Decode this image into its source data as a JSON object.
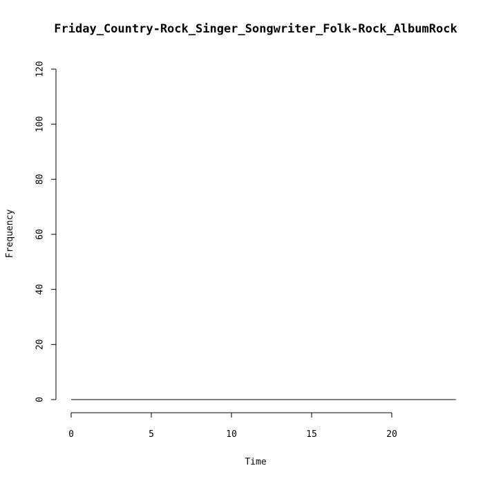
{
  "chart_data": {
    "type": "line",
    "title": "Friday_Country-Rock_Singer_Songwriter_Folk-Rock_AlbumRock",
    "xlabel": "Time",
    "ylabel": "Frequency",
    "xlim": [
      0,
      24
    ],
    "ylim": [
      0,
      120
    ],
    "x_ticks": [
      0,
      5,
      10,
      15,
      20
    ],
    "y_ticks": [
      0,
      20,
      40,
      60,
      80,
      100,
      120
    ],
    "grid": false,
    "series": [
      {
        "x": [
          0,
          1,
          2,
          3,
          4,
          5,
          6,
          7,
          8,
          9,
          10,
          11,
          12,
          13,
          14,
          15,
          16,
          17,
          18,
          19,
          20,
          21,
          22,
          23,
          24
        ],
        "values": [
          0,
          0,
          0,
          0,
          0,
          0,
          0,
          0,
          0,
          0,
          0,
          0,
          0,
          0,
          0,
          0,
          0,
          0,
          0,
          0,
          0,
          0,
          0,
          0,
          0
        ]
      }
    ],
    "colors": {
      "line": "#000000",
      "axis": "#000000"
    }
  }
}
